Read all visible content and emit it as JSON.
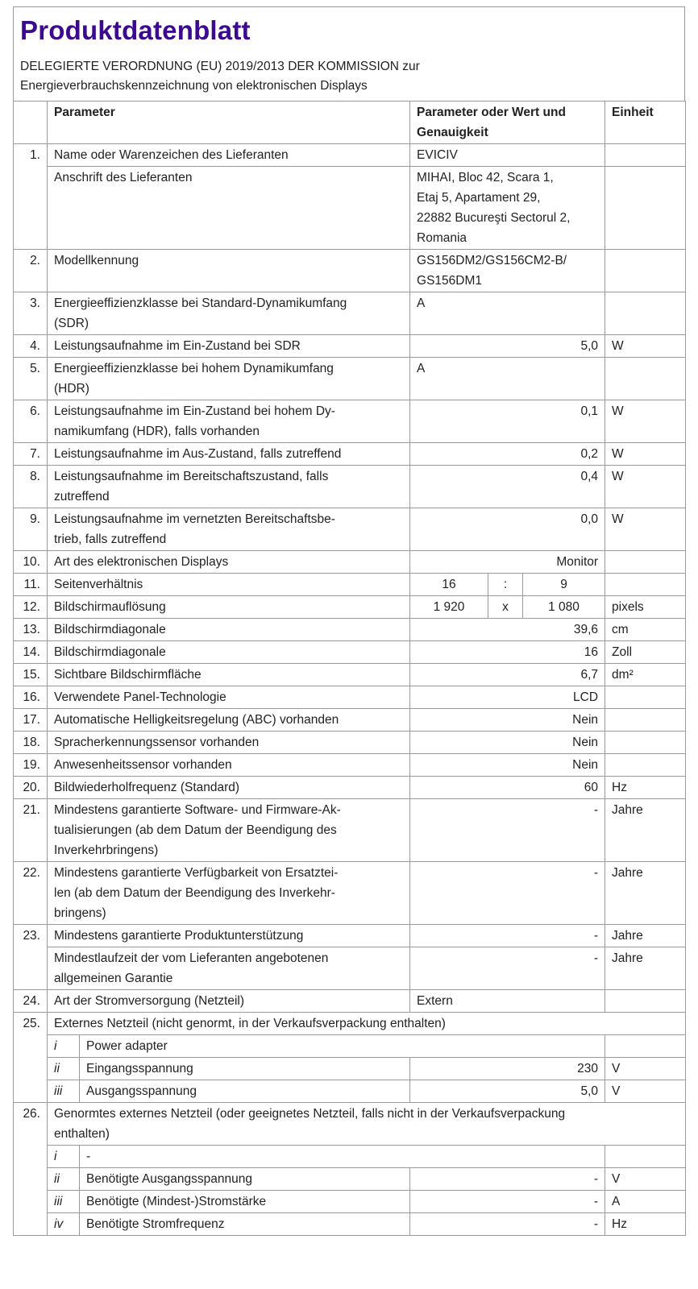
{
  "title": "Produktdatenblatt",
  "subtitle": "DELEGIERTE VERORDNUNG (EU) 2019/2013 DER KOMMISSION zur\nEnergieverbrauchskennzeichnung von elektronischen Displays",
  "header": {
    "param": "Parameter",
    "value": "Parameter oder Wert und\nGenauigkeit",
    "unit": "Einheit"
  },
  "rows": [
    {
      "num": "1.",
      "param": "Name oder Warenzeichen des Lieferanten",
      "value": "EVICIV",
      "align": "left",
      "unit": ""
    },
    {
      "cont": true,
      "param": "Anschrift des Lieferanten",
      "value": "MIHAI, Bloc 42, Scara 1,\nEtaj 5, Apartament 29,\n22882 Bucureşti Sectorul 2,\nRomania",
      "align": "left",
      "unit": ""
    },
    {
      "num": "2.",
      "param": "Modellkennung",
      "value": "GS156DM2/GS156CM2-B/\nGS156DM1",
      "align": "left",
      "unit": ""
    },
    {
      "num": "3.",
      "param": "Energieeffizienzklasse bei Standard-Dynamikumfang\n(SDR)",
      "value": "A",
      "align": "left",
      "unit": ""
    },
    {
      "num": "4.",
      "param": "Leistungsaufnahme im Ein-Zustand bei SDR",
      "value": "5,0",
      "align": "right",
      "unit": "W"
    },
    {
      "num": "5.",
      "param": "Energieeffizienzklasse bei hohem Dynamikumfang\n(HDR)",
      "value": "A",
      "align": "left",
      "unit": ""
    },
    {
      "num": "6.",
      "param": "Leistungsaufnahme im Ein-Zustand bei hohem Dy-\nnamikumfang (HDR), falls vorhanden",
      "value": "0,1",
      "align": "right",
      "unit": "W"
    },
    {
      "num": "7.",
      "param": "Leistungsaufnahme im Aus-Zustand, falls zutreffend",
      "value": "0,2",
      "align": "right",
      "unit": "W"
    },
    {
      "num": "8.",
      "param": "Leistungsaufnahme im Bereitschaftszustand, falls\nzutreffend",
      "value": "0,4",
      "align": "right",
      "unit": "W"
    },
    {
      "num": "9.",
      "param": "Leistungsaufnahme im vernetzten Bereitschaftsbe-\ntrieb, falls zutreffend",
      "value": "0,0",
      "align": "right",
      "unit": "W"
    },
    {
      "num": "10.",
      "param": "Art des elektronischen Displays",
      "value": "Monitor",
      "align": "right",
      "unit": ""
    },
    {
      "num": "11.",
      "param": "Seitenverhältnis",
      "split": [
        "16",
        ":",
        "9"
      ],
      "unit": ""
    },
    {
      "num": "12.",
      "param": "Bildschirmauflösung",
      "split": [
        "1 920",
        "x",
        "1 080"
      ],
      "unit": "pixels"
    },
    {
      "num": "13.",
      "param": "Bildschirmdiagonale",
      "value": "39,6",
      "align": "right",
      "unit": "cm"
    },
    {
      "num": "14.",
      "param": "Bildschirmdiagonale",
      "value": "16",
      "align": "right",
      "unit": "Zoll"
    },
    {
      "num": "15.",
      "param": "Sichtbare Bildschirmfläche",
      "value": "6,7",
      "align": "right",
      "unit": "dm²"
    },
    {
      "num": "16.",
      "param": "Verwendete Panel-Technologie",
      "value": "LCD",
      "align": "right",
      "unit": ""
    },
    {
      "num": "17.",
      "param": "Automatische Helligkeitsregelung (ABC) vorhanden",
      "value": "Nein",
      "align": "right",
      "unit": ""
    },
    {
      "num": "18.",
      "param": "Spracherkennungssensor vorhanden",
      "value": "Nein",
      "align": "right",
      "unit": ""
    },
    {
      "num": "19.",
      "param": "Anwesenheitssensor vorhanden",
      "value": "Nein",
      "align": "right",
      "unit": ""
    },
    {
      "num": "20.",
      "param": "Bildwiederholfrequenz (Standard)",
      "value": "60",
      "align": "right",
      "unit": "Hz"
    },
    {
      "num": "21.",
      "param": "Mindestens garantierte Software- und Firmware-Ak-\ntualisierungen (ab dem Datum der Beendigung des\nInverkehrbringens)",
      "value": "-",
      "align": "right",
      "unit": "Jahre"
    },
    {
      "num": "22.",
      "param": "Mindestens garantierte Verfügbarkeit von Ersatztei-\nlen (ab dem Datum der Beendigung des Inverkehr-\nbringens)",
      "value": "-",
      "align": "right",
      "unit": "Jahre"
    },
    {
      "num": "23.",
      "param": "Mindestens garantierte Produktunterstützung",
      "value": "-",
      "align": "right",
      "unit": "Jahre"
    },
    {
      "cont": true,
      "param": "Mindestlaufzeit der vom Lieferanten angebotenen\nallgemeinen Garantie",
      "value": "-",
      "align": "right",
      "unit": "Jahre"
    },
    {
      "num": "24.",
      "param": "Art der Stromversorgung (Netzteil)",
      "value": "Extern",
      "align": "left",
      "unit": ""
    },
    {
      "num": "25.",
      "group": true,
      "param": "Externes Netzteil (nicht genormt, in der Verkaufsverpackung enthalten)"
    },
    {
      "cont": true,
      "roman": "i",
      "param": "Power adapter",
      "wide": true,
      "unit": ""
    },
    {
      "cont": true,
      "roman": "ii",
      "param": "Eingangsspannung",
      "value": "230",
      "align": "right",
      "unit": "V"
    },
    {
      "cont": true,
      "roman": "iii",
      "param": "Ausgangsspannung",
      "value": "5,0",
      "align": "right",
      "unit": "V"
    },
    {
      "num": "26.",
      "group": true,
      "param": "Genormtes externes Netzteil (oder geeignetes Netzteil, falls nicht in der Verkaufsverpackung\nenthalten)"
    },
    {
      "cont": true,
      "roman": "i",
      "param": "-",
      "wide": true,
      "unit": ""
    },
    {
      "cont": true,
      "roman": "ii",
      "param": "Benötigte Ausgangsspannung",
      "value": "-",
      "align": "right",
      "unit": "V"
    },
    {
      "cont": true,
      "roman": "iii",
      "param": "Benötigte (Mindest-)Stromstärke",
      "value": "-",
      "align": "right",
      "unit": "A"
    },
    {
      "cont": true,
      "roman": "iv",
      "param": "Benötigte Stromfrequenz",
      "value": "-",
      "align": "right",
      "unit": "Hz"
    }
  ],
  "colors": {
    "title": "#3b0a8f",
    "border": "#9a9a9a"
  }
}
